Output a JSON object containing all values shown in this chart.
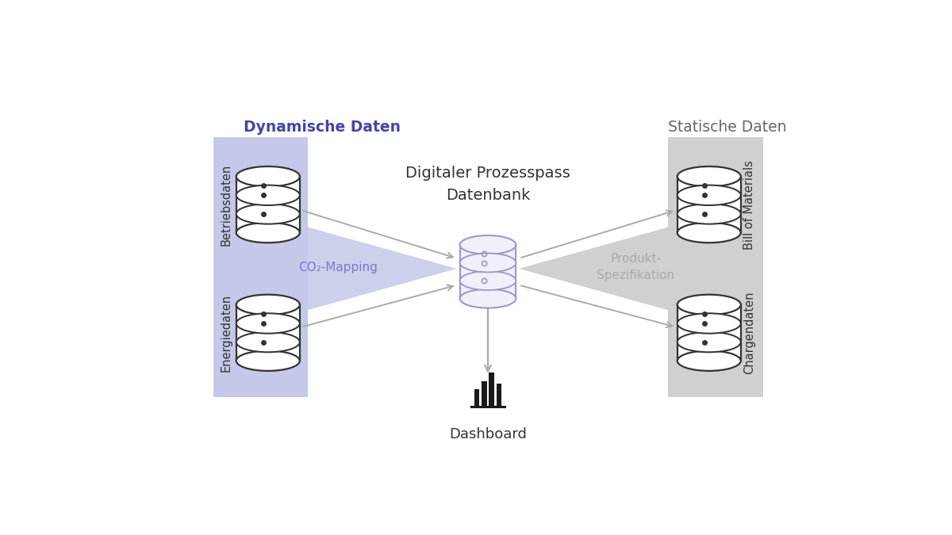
{
  "title": "Digitaler Prozesspass\nDatenbank",
  "left_title": "Dynamische Daten",
  "right_title": "Statische Daten",
  "left_bg_color": "#c5c8e8",
  "right_bg_color": "#d0d0d0",
  "left_triangle_color": "#c5c8e8",
  "right_triangle_color": "#c8c8c8",
  "arrow_color": "#aaaaaa",
  "left_label": "CO₂-Mapping",
  "left_label_color": "#7878cc",
  "right_label": "Produkt-\nSpezifikation",
  "right_label_color": "#aaaaaa",
  "db1_label": "Betriebsdaten",
  "db2_label": "Energiedaten",
  "db3_label": "Bill of Materials",
  "db4_label": "Chargendaten",
  "dashboard_label": "Dashboard",
  "center_db_body": "#f0f0fa",
  "center_db_edge": "#9999cc",
  "side_db_body": "#ffffff",
  "side_db_edge": "#333333",
  "background_color": "#ffffff",
  "figw": 12.0,
  "figh": 6.75,
  "dpi": 100
}
